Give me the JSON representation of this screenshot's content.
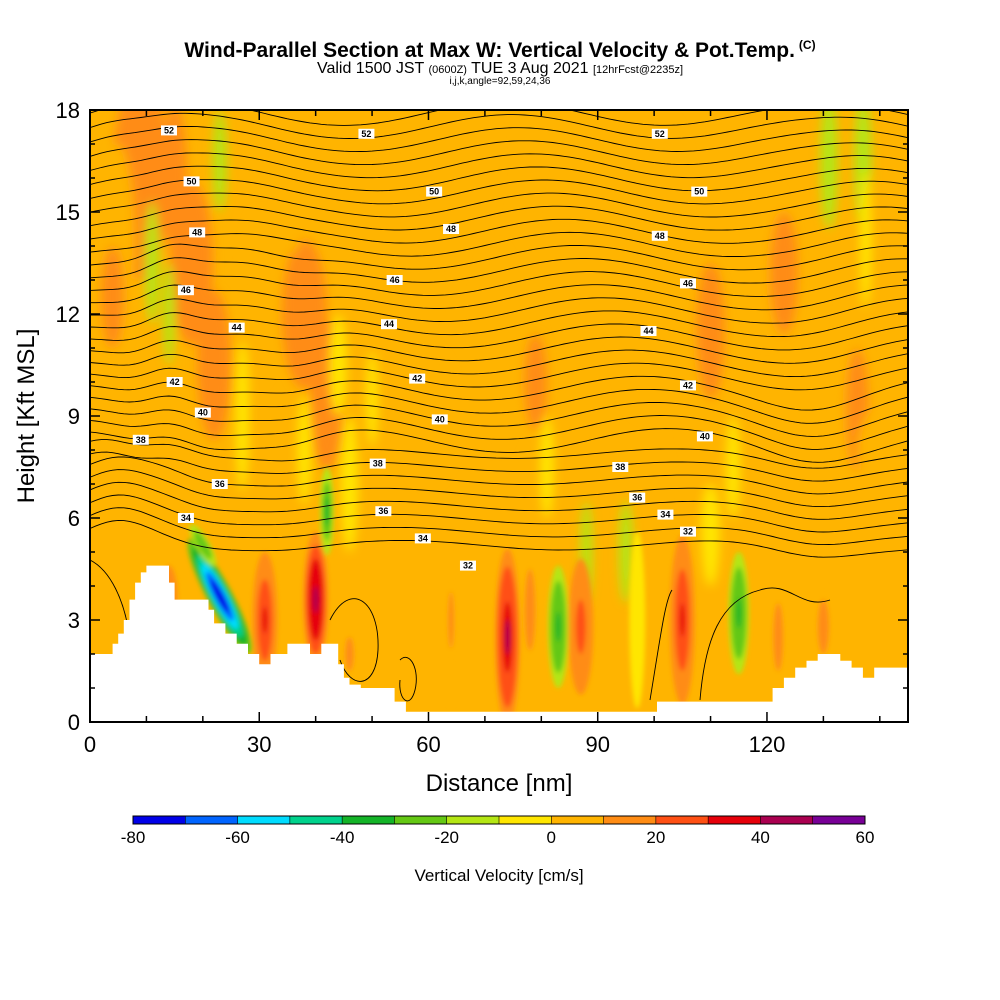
{
  "title": {
    "main": "Wind-Parallel Section at Max W: Vertical Velocity & Pot.Temp.",
    "copyright": "(C)",
    "valid_a": "Valid 1500 JST",
    "valid_b": "(0600Z)",
    "valid_c": "TUE 3 Aug 2021",
    "valid_d": "[12hrFcst@2235z]",
    "params": "i,j,k,angle=92,59,24,36"
  },
  "chart_data": {
    "type": "heatmap",
    "xlabel": "Distance [nm]",
    "ylabel": "Height [Kft MSL]",
    "xlim": [
      0,
      145
    ],
    "ylim": [
      0,
      18
    ],
    "x_ticks": [
      0,
      30,
      60,
      90,
      120
    ],
    "y_ticks": [
      0,
      3,
      6,
      9,
      12,
      15,
      18
    ],
    "colorbar": {
      "label": "Vertical Velocity [cm/s]",
      "range": [
        -80,
        60
      ],
      "tick_labels": [
        "-80",
        "-60",
        "-40",
        "-20",
        "0",
        "20",
        "40",
        "60"
      ],
      "colors": [
        "#0000e8",
        "#0064ff",
        "#00dcff",
        "#00d28c",
        "#14b428",
        "#64c814",
        "#b4e614",
        "#ffe600",
        "#ffb400",
        "#ff8c14",
        "#ff5014",
        "#e6000a",
        "#aa0050",
        "#780096"
      ]
    },
    "theta_contour_labels": [
      "52",
      "50",
      "48",
      "46",
      "44",
      "42",
      "40",
      "38",
      "36",
      "34",
      "32"
    ],
    "terrain_kft": [
      [
        0,
        2
      ],
      [
        3,
        2
      ],
      [
        4,
        2.3
      ],
      [
        5,
        2.6
      ],
      [
        6,
        3
      ],
      [
        7,
        3.6
      ],
      [
        8,
        4.1
      ],
      [
        9,
        4.4
      ],
      [
        10,
        4.6
      ],
      [
        13,
        4.6
      ],
      [
        14,
        4.1
      ],
      [
        15,
        3.6
      ],
      [
        20,
        3.6
      ],
      [
        21,
        3.3
      ],
      [
        22,
        2.9
      ],
      [
        24,
        2.6
      ],
      [
        26,
        2.3
      ],
      [
        28,
        2
      ],
      [
        30,
        1.7
      ],
      [
        31,
        1.7
      ],
      [
        32,
        2
      ],
      [
        34,
        2
      ],
      [
        35,
        2.3
      ],
      [
        38,
        2.3
      ],
      [
        39,
        2
      ],
      [
        40,
        2
      ],
      [
        41,
        2.3
      ],
      [
        43,
        2.3
      ],
      [
        44,
        1.7
      ],
      [
        45,
        1.3
      ],
      [
        46,
        1.1
      ],
      [
        48,
        1
      ],
      [
        52,
        1
      ],
      [
        54,
        0.6
      ],
      [
        56,
        0.3
      ],
      [
        100,
        0.3
      ],
      [
        100.5,
        0.6
      ],
      [
        120,
        0.6
      ],
      [
        121,
        1
      ],
      [
        123,
        1.3
      ],
      [
        125,
        1.6
      ],
      [
        127,
        1.8
      ],
      [
        129,
        2
      ],
      [
        131,
        2
      ],
      [
        133,
        1.8
      ],
      [
        135,
        1.6
      ],
      [
        137,
        1.3
      ],
      [
        138,
        1.3
      ],
      [
        139,
        1.6
      ],
      [
        145,
        1.7
      ]
    ],
    "updraft_cores": [
      {
        "x": 31,
        "y": 3.0,
        "w": 35
      },
      {
        "x": 40,
        "y": 3.6,
        "w": 45
      },
      {
        "x": 74,
        "y": 2.5,
        "w": 40
      },
      {
        "x": 87,
        "y": 2.8,
        "w": 25
      },
      {
        "x": 105,
        "y": 3.0,
        "w": 30
      }
    ],
    "downdraft_cores": [
      {
        "x": 23,
        "y": 3.7,
        "w": -80
      },
      {
        "x": 83,
        "y": 2.8,
        "w": -35
      },
      {
        "x": 115,
        "y": 3.2,
        "w": -35
      }
    ]
  }
}
